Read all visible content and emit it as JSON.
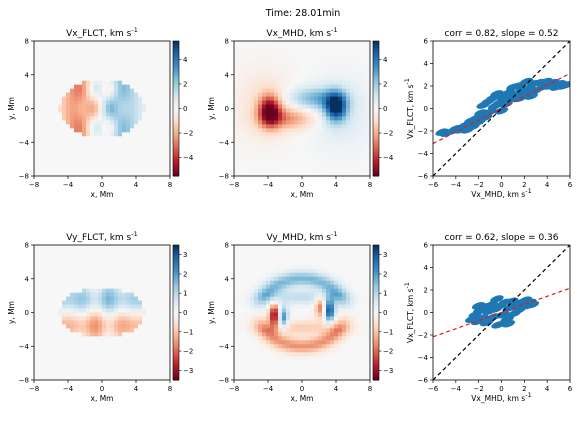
{
  "figure": {
    "title": "Time: 28.01min"
  },
  "colors": {
    "red": "#b2182b",
    "blue": "#2166ac",
    "neutral": "#f7f7f7",
    "black_line": "#000000",
    "red_line": "#e31a1c",
    "scatter": "#1f77b4"
  },
  "chart_data": [
    {
      "type": "heatmap",
      "title": "Vx_FLCT, km s",
      "title_sup": "-1",
      "xlabel": "x, Mm",
      "ylabel": "y, Mm",
      "xlim": [
        -8,
        8
      ],
      "ylim": [
        -8,
        8
      ],
      "xticks": [
        -8,
        -4,
        0,
        4,
        8
      ],
      "xticklabels": [
        "−8",
        "−4",
        "0",
        "4",
        "8"
      ],
      "yticks": [
        -8,
        -4,
        0,
        4,
        8
      ],
      "yticklabels": [
        "−8",
        "−4",
        "0",
        "4",
        "8"
      ],
      "colormap": "RdBu",
      "clim": [
        -5.5,
        5.5
      ],
      "colorbar_ticks": [
        -4,
        -2,
        0,
        2,
        4
      ],
      "colorbar_ticklabels": [
        "−4",
        "−2",
        "0",
        "2",
        "4"
      ],
      "pattern": "flct_x"
    },
    {
      "type": "heatmap",
      "title": "Vx_MHD, km s",
      "title_sup": "-1",
      "xlabel": "x, Mm",
      "ylabel": "y, Mm",
      "xlim": [
        -8,
        8
      ],
      "ylim": [
        -8,
        8
      ],
      "xticks": [
        -8,
        -4,
        0,
        4,
        8
      ],
      "xticklabels": [
        "−8",
        "−4",
        "0",
        "4",
        "8"
      ],
      "yticks": [
        -8,
        -4,
        0,
        4,
        8
      ],
      "yticklabels": [
        "−8",
        "−4",
        "0",
        "4",
        "8"
      ],
      "colormap": "RdBu",
      "clim": [
        -5.5,
        5.5
      ],
      "colorbar_ticks": [
        -4,
        -2,
        0,
        2,
        4
      ],
      "colorbar_ticklabels": [
        "−4",
        "−2",
        "0",
        "2",
        "4"
      ],
      "pattern": "mhd_x"
    },
    {
      "type": "scatter",
      "title": "corr = 0.82, slope = 0.52",
      "xlabel": "Vx_MHD, km s",
      "xlabel_sup": "-1",
      "ylabel": "Vx_FLCT, km s",
      "ylabel_sup": "-1",
      "xlim": [
        -6,
        6
      ],
      "ylim": [
        -6,
        6
      ],
      "xticks": [
        -6,
        -4,
        -2,
        0,
        2,
        4,
        6
      ],
      "xticklabels": [
        "−6",
        "−4",
        "−2",
        "0",
        "2",
        "4",
        "6"
      ],
      "yticks": [
        -6,
        -4,
        -2,
        0,
        2,
        4,
        6
      ],
      "yticklabels": [
        "−6",
        "−4",
        "−2",
        "0",
        "2",
        "4",
        "6"
      ],
      "identity_line": true,
      "fit_slope": 0.52,
      "points": [
        [
          -5.2,
          -2.1
        ],
        [
          -4.8,
          -2.2
        ],
        [
          -4.3,
          -2.0
        ],
        [
          -4.0,
          -1.8
        ],
        [
          -3.6,
          -1.9
        ],
        [
          -3.2,
          -1.5
        ],
        [
          -3.0,
          -1.9
        ],
        [
          -2.7,
          -1.1
        ],
        [
          -2.5,
          -1.6
        ],
        [
          -2.3,
          -0.9
        ],
        [
          -2.0,
          -1.2
        ],
        [
          -1.8,
          -0.4
        ],
        [
          -1.6,
          0.3
        ],
        [
          -1.4,
          -0.8
        ],
        [
          -1.2,
          0.6
        ],
        [
          -1.0,
          -0.3
        ],
        [
          -0.8,
          0.9
        ],
        [
          -0.6,
          0.2
        ],
        [
          -0.4,
          1.3
        ],
        [
          -0.2,
          0.5
        ],
        [
          0.0,
          -0.2
        ],
        [
          0.2,
          1.0
        ],
        [
          0.4,
          0.4
        ],
        [
          0.6,
          1.4
        ],
        [
          0.8,
          0.8
        ],
        [
          1.0,
          1.9
        ],
        [
          1.2,
          1.2
        ],
        [
          1.4,
          2.0
        ],
        [
          1.6,
          0.9
        ],
        [
          1.8,
          1.7
        ],
        [
          2.0,
          1.3
        ],
        [
          2.2,
          2.4
        ],
        [
          2.4,
          1.8
        ],
        [
          2.6,
          1.1
        ],
        [
          2.8,
          2.2
        ],
        [
          3.0,
          1.6
        ],
        [
          3.3,
          2.3
        ],
        [
          3.6,
          1.9
        ],
        [
          3.9,
          2.4
        ],
        [
          4.2,
          2.0
        ],
        [
          4.5,
          2.3
        ],
        [
          4.8,
          1.9
        ],
        [
          5.1,
          2.2
        ],
        [
          5.4,
          2.0
        ],
        [
          5.7,
          2.1
        ]
      ]
    },
    {
      "type": "heatmap",
      "title": "Vy_FLCT, km s",
      "title_sup": "-1",
      "xlabel": "x, Mm",
      "ylabel": "y, Mm",
      "xlim": [
        -8,
        8
      ],
      "ylim": [
        -8,
        8
      ],
      "xticks": [
        -8,
        -4,
        0,
        4,
        8
      ],
      "xticklabels": [
        "−8",
        "−4",
        "0",
        "4",
        "8"
      ],
      "yticks": [
        -8,
        -4,
        0,
        4,
        8
      ],
      "yticklabels": [
        "−8",
        "−4",
        "0",
        "4",
        "8"
      ],
      "colormap": "RdBu",
      "clim": [
        -3.5,
        3.5
      ],
      "colorbar_ticks": [
        -3,
        -2,
        -1,
        0,
        1,
        2,
        3
      ],
      "colorbar_ticklabels": [
        "−3",
        "−2",
        "−1",
        "0",
        "1",
        "2",
        "3"
      ],
      "pattern": "flct_y"
    },
    {
      "type": "heatmap",
      "title": "Vy_MHD, km s",
      "title_sup": "-1",
      "xlabel": "x, Mm",
      "ylabel": "y, Mm",
      "xlim": [
        -8,
        8
      ],
      "ylim": [
        -8,
        8
      ],
      "xticks": [
        -8,
        -4,
        0,
        4,
        8
      ],
      "xticklabels": [
        "−8",
        "−4",
        "0",
        "4",
        "8"
      ],
      "yticks": [
        -8,
        -4,
        0,
        4,
        8
      ],
      "yticklabels": [
        "−8",
        "−4",
        "0",
        "4",
        "8"
      ],
      "colormap": "RdBu",
      "clim": [
        -3.5,
        3.5
      ],
      "colorbar_ticks": [
        -3,
        -2,
        -1,
        0,
        1,
        2,
        3
      ],
      "colorbar_ticklabels": [
        "−3",
        "−2",
        "−1",
        "0",
        "1",
        "2",
        "3"
      ],
      "pattern": "mhd_y"
    },
    {
      "type": "scatter",
      "title": "corr = 0.62, slope = 0.36",
      "xlabel": "Vx_MHD, km s",
      "xlabel_sup": "-1",
      "ylabel": "Vx_FLCT, km s",
      "ylabel_sup": "-1",
      "xlim": [
        -6,
        6
      ],
      "ylim": [
        -6,
        6
      ],
      "xticks": [
        -6,
        -4,
        -2,
        0,
        2,
        4,
        6
      ],
      "xticklabels": [
        "−6",
        "−4",
        "−2",
        "0",
        "2",
        "4",
        "6"
      ],
      "yticks": [
        -6,
        -4,
        -2,
        0,
        2,
        4,
        6
      ],
      "yticklabels": [
        "−6",
        "−4",
        "−2",
        "0",
        "2",
        "4",
        "6"
      ],
      "identity_line": true,
      "fit_slope": 0.36,
      "points": [
        [
          -2.6,
          -0.6
        ],
        [
          -2.3,
          -0.2
        ],
        [
          -2.1,
          -0.8
        ],
        [
          -1.9,
          0.2
        ],
        [
          -1.7,
          -0.5
        ],
        [
          -1.5,
          0.5
        ],
        [
          -1.3,
          -0.9
        ],
        [
          -1.1,
          0.1
        ],
        [
          -0.9,
          0.7
        ],
        [
          -0.7,
          -0.4
        ],
        [
          -0.5,
          0.3
        ],
        [
          -0.3,
          -1.1
        ],
        [
          -0.1,
          0.6
        ],
        [
          0.1,
          -0.2
        ],
        [
          0.3,
          0.9
        ],
        [
          0.5,
          -0.6
        ],
        [
          0.7,
          0.4
        ],
        [
          0.9,
          1.0
        ],
        [
          1.1,
          -0.1
        ],
        [
          1.3,
          0.7
        ],
        [
          1.5,
          0.2
        ],
        [
          1.7,
          0.9
        ],
        [
          1.9,
          0.5
        ],
        [
          2.1,
          1.1
        ],
        [
          2.3,
          0.6
        ],
        [
          2.5,
          0.9
        ],
        [
          2.7,
          0.7
        ],
        [
          -2.0,
          0.6
        ],
        [
          -0.4,
          1.2
        ],
        [
          0.6,
          -1.0
        ]
      ]
    }
  ]
}
